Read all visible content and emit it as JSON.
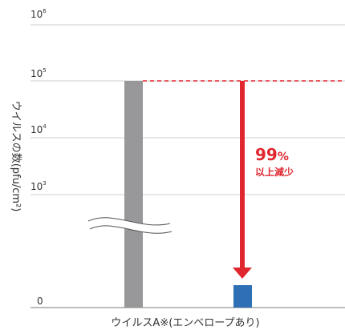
{
  "chart_data": {
    "type": "bar",
    "yscale": "log",
    "ylabel": "ウイルスの数(pfu/cm²)",
    "y_ticks": [
      {
        "value": 1000000,
        "base": "10",
        "exp": "6"
      },
      {
        "value": 100000,
        "base": "10",
        "exp": "5"
      },
      {
        "value": 10000,
        "base": "10",
        "exp": "4"
      },
      {
        "value": 1000,
        "base": "10",
        "exp": "3"
      },
      {
        "value": 0,
        "base": "0",
        "exp": ""
      }
    ],
    "axis_break": true,
    "xlabel": "ウイルスA※(エンベロープあり)",
    "bars": [
      {
        "label": "",
        "value": 100000,
        "color": "#98989a"
      },
      {
        "label": "",
        "value": 0.3,
        "color": "#2f6fb5"
      }
    ],
    "reference_line": {
      "value": 100000,
      "color": "#e0262e",
      "style": "dashed"
    },
    "annotation": {
      "value_text": "99",
      "unit_text": "%",
      "sub_text": "以上減少",
      "color": "#e0262e"
    }
  }
}
